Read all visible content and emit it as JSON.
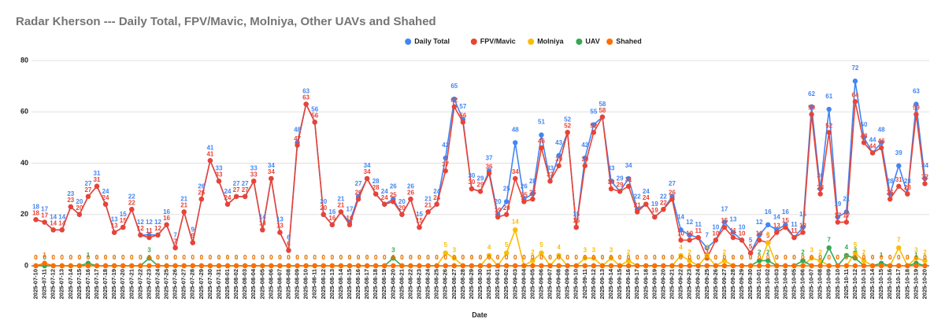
{
  "chart_data": {
    "type": "line",
    "title": "Radar Kherson --- Daily Total, FPV/Mavic, Molniya, Other UAVs and Shahed",
    "x_label": "Date",
    "legend": "top",
    "grid": true,
    "ylim": [
      0,
      80
    ],
    "yticks": [
      0,
      20,
      40,
      60,
      80
    ],
    "categories": [
      "2025-07-10",
      "2025-07-11",
      "2025-07-12",
      "2025-07-13",
      "2025-07-14",
      "2025-07-15",
      "2025-07-16",
      "2025-07-17",
      "2025-07-18",
      "2025-07-19",
      "2025-07-20",
      "2025-07-21",
      "2025-07-22",
      "2025-07-23",
      "2025-07-24",
      "2025-07-25",
      "2025-07-26",
      "2025-07-27",
      "2025-07-28",
      "2025-07-29",
      "2025-07-30",
      "2025-07-31",
      "2025-08-01",
      "2025-08-02",
      "2025-08-03",
      "2025-08-04",
      "2025-08-05",
      "2025-08-06",
      "2025-08-07",
      "2025-08-08",
      "2025-08-09",
      "2025-08-10",
      "2025-08-11",
      "2025-08-12",
      "2025-08-13",
      "2025-08-14",
      "2025-08-15",
      "2025-08-16",
      "2025-08-17",
      "2025-08-18",
      "2025-08-19",
      "2025-08-20",
      "2025-08-21",
      "2025-08-22",
      "2025-08-23",
      "2025-08-24",
      "2025-08-25",
      "2025-08-26",
      "2025-08-27",
      "2025-08-28",
      "2025-08-29",
      "2025-08-30",
      "2025-08-31",
      "2025-09-01",
      "2025-09-02",
      "2025-09-03",
      "2025-09-04",
      "2025-09-05",
      "2025-09-06",
      "2025-09-07",
      "2025-09-08",
      "2025-09-09",
      "2025-09-10",
      "2025-09-11",
      "2025-09-12",
      "2025-09-13",
      "2025-09-14",
      "2025-09-15",
      "2025-09-16",
      "2025-09-17",
      "2025-09-18",
      "2025-09-19",
      "2025-09-20",
      "2025-09-21",
      "2025-09-22",
      "2025-09-23",
      "2025-09-24",
      "2025-09-25",
      "2025-09-26",
      "2025-09-27",
      "2025-09-28",
      "2025-09-29",
      "2025-09-30",
      "2025-10-01",
      "2025-10-02",
      "2025-10-03",
      "2025-10-04",
      "2025-10-05",
      "2025-10-06",
      "2025-10-07",
      "2025-10-08",
      "2025-10-09",
      "2025-10-10",
      "2025-10-11",
      "2025-10-12",
      "2025-10-13",
      "2025-10-14",
      "2025-10-15",
      "2025-10-16",
      "2025-10-17",
      "2025-10-18",
      "2025-10-19",
      "2025-10-20"
    ],
    "series": [
      {
        "name": "Daily Total",
        "color": "#4285f4",
        "values": [
          18,
          17,
          14,
          14,
          23,
          20,
          27,
          31,
          24,
          13,
          15,
          22,
          12,
          12,
          12,
          16,
          7,
          21,
          9,
          26,
          41,
          33,
          24,
          27,
          27,
          33,
          14,
          34,
          13,
          6,
          48,
          63,
          56,
          20,
          16,
          21,
          17,
          27,
          34,
          28,
          24,
          26,
          20,
          26,
          15,
          21,
          24,
          42,
          65,
          57,
          30,
          29,
          37,
          20,
          25,
          48,
          26,
          28,
          51,
          33,
          43,
          52,
          15,
          42,
          55,
          58,
          33,
          29,
          34,
          22,
          24,
          19,
          22,
          27,
          14,
          12,
          11,
          7,
          10,
          17,
          13,
          10,
          5,
          12,
          16,
          14,
          16,
          11,
          15,
          62,
          30,
          61,
          19,
          21,
          72,
          50,
          44,
          48,
          28,
          39,
          28,
          63,
          34
        ]
      },
      {
        "name": "FPV/Mavic",
        "color": "#ea4335",
        "values": [
          18,
          17,
          14,
          14,
          23,
          20,
          27,
          31,
          24,
          13,
          15,
          22,
          12,
          11,
          12,
          16,
          7,
          21,
          9,
          26,
          41,
          33,
          24,
          27,
          27,
          33,
          14,
          34,
          13,
          6,
          47,
          63,
          56,
          20,
          16,
          21,
          16,
          26,
          34,
          28,
          24,
          25,
          20,
          26,
          15,
          21,
          24,
          37,
          62,
          56,
          30,
          29,
          36,
          19,
          20,
          34,
          25,
          26,
          46,
          33,
          39,
          52,
          15,
          39,
          52,
          58,
          30,
          29,
          31,
          21,
          24,
          19,
          22,
          26,
          10,
          10,
          11,
          3,
          10,
          15,
          11,
          10,
          5,
          10,
          9,
          13,
          15,
          11,
          13,
          59,
          28,
          52,
          17,
          17,
          64,
          48,
          44,
          46,
          26,
          31,
          28,
          59,
          32
        ]
      },
      {
        "name": "Molniya",
        "color": "#fbbc04",
        "values": [
          0,
          0,
          0,
          0,
          0,
          0,
          0,
          0,
          0,
          0,
          0,
          0,
          0,
          0,
          0,
          0,
          0,
          0,
          0,
          0,
          0,
          0,
          0,
          0,
          0,
          0,
          0,
          0,
          0,
          0,
          0,
          0,
          0,
          0,
          0,
          0,
          0,
          0,
          0,
          0,
          0,
          0,
          0,
          0,
          0,
          0,
          0,
          5,
          3,
          0,
          0,
          0,
          4,
          0,
          5,
          14,
          0,
          2,
          5,
          0,
          4,
          0,
          0,
          3,
          3,
          0,
          3,
          0,
          2,
          0,
          0,
          0,
          0,
          0,
          4,
          2,
          0,
          4,
          0,
          2,
          0,
          0,
          0,
          0,
          9,
          0,
          0,
          0,
          0,
          3,
          2,
          0,
          0,
          0,
          5,
          2,
          0,
          0,
          0,
          7,
          0,
          3,
          2
        ]
      },
      {
        "name": "UAV",
        "color": "#34a853",
        "values": [
          0,
          0,
          0,
          0,
          0,
          0,
          1,
          0,
          0,
          0,
          0,
          0,
          0,
          3,
          0,
          0,
          0,
          0,
          0,
          0,
          0,
          0,
          0,
          0,
          0,
          0,
          0,
          0,
          0,
          0,
          0,
          0,
          0,
          0,
          0,
          0,
          0,
          0,
          0,
          0,
          0,
          3,
          0,
          0,
          0,
          0,
          0,
          0,
          0,
          0,
          0,
          0,
          0,
          0,
          0,
          0,
          0,
          0,
          0,
          0,
          0,
          0,
          0,
          0,
          0,
          0,
          0,
          0,
          0,
          0,
          0,
          0,
          0,
          0,
          0,
          0,
          0,
          0,
          0,
          0,
          0,
          0,
          0,
          2,
          2,
          0,
          0,
          0,
          2,
          0,
          0,
          7,
          0,
          4,
          3,
          0,
          0,
          1,
          0,
          0,
          0,
          1,
          0
        ]
      },
      {
        "name": "Shahed",
        "color": "#ff6d01",
        "values": [
          0,
          1,
          0,
          0,
          0,
          0,
          0,
          0,
          0,
          0,
          0,
          0,
          0,
          0,
          0,
          0,
          0,
          0,
          0,
          0,
          0,
          0,
          0,
          0,
          0,
          0,
          0,
          0,
          0,
          0,
          0,
          0,
          0,
          0,
          0,
          0,
          0,
          0,
          0,
          0,
          0,
          0,
          0,
          0,
          0,
          0,
          0,
          0,
          0,
          0,
          0,
          0,
          0,
          0,
          0,
          0,
          0,
          0,
          0,
          0,
          0,
          0,
          0,
          0,
          0,
          0,
          0,
          0,
          0,
          0,
          0,
          0,
          0,
          0,
          0,
          0,
          0,
          0,
          0,
          0,
          0,
          0,
          0,
          0,
          0,
          0,
          0,
          0,
          0,
          0,
          0,
          0,
          0,
          0,
          0,
          0,
          0,
          0,
          0,
          0,
          0,
          0,
          0
        ]
      }
    ]
  }
}
